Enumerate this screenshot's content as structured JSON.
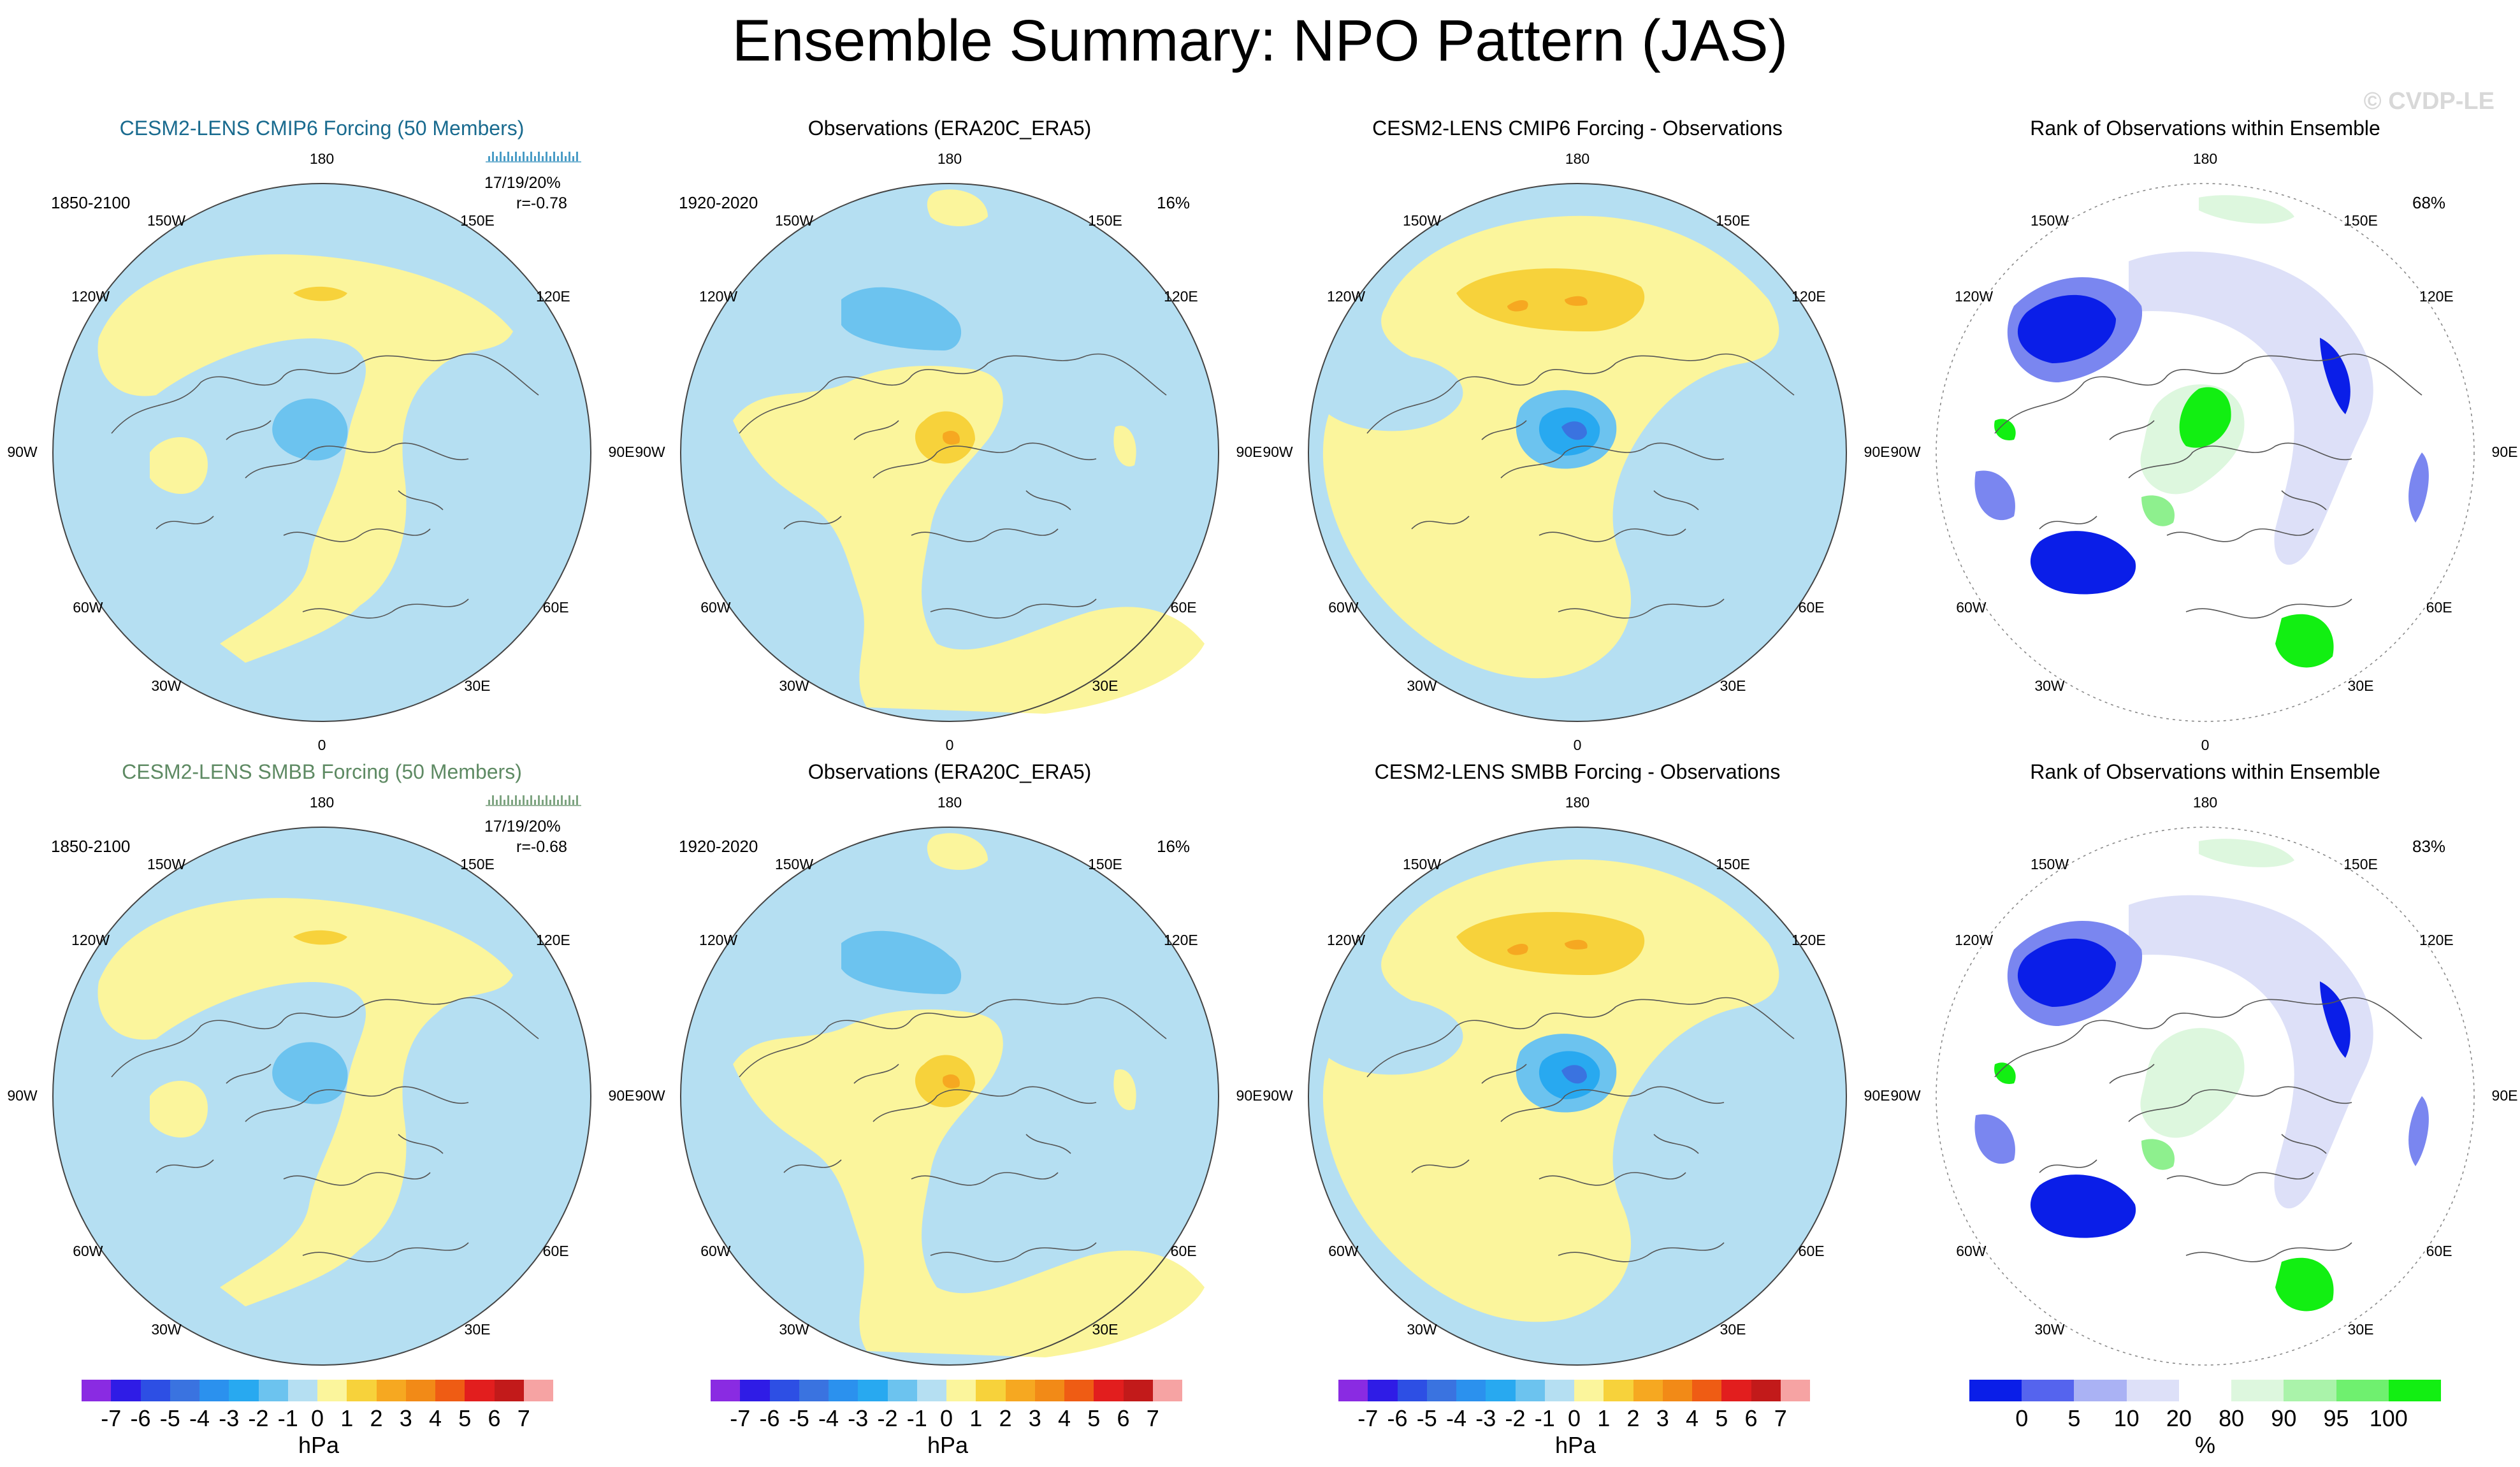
{
  "header": {
    "title": "Ensemble Summary: NPO Pattern (JAS)",
    "copyright": "© CVDP-LE"
  },
  "colors": {
    "ocean_bg": "#b5dff2",
    "pos1": "#fbf59c",
    "pos2": "#f7d23b",
    "pos3": "#f6a821",
    "neg1": "#6cc3ef",
    "neg2": "#28a9f0",
    "neg3": "#3a73e0",
    "rank_low": "#0a1ee8",
    "rank_low2": "#7a86f0",
    "rank_lowlight": "#dde0f8",
    "rank_high": "#12ef12",
    "rank_high2": "#8ef08e",
    "rank_highlight": "#ddf7de",
    "cmip_title": "#1a6b8f",
    "smbb_title": "#5e8a63"
  },
  "panels": [
    {
      "title": "CESM2-LENS CMIP6 Forcing (50 Members)",
      "period": "1850-2100",
      "stats_line1": "17/19/20%",
      "stats_line2": "r=-0.78",
      "pct": ""
    },
    {
      "title": "Observations (ERA20C_ERA5)",
      "period": "1920-2020",
      "pct": "16%"
    },
    {
      "title": "CESM2-LENS CMIP6 Forcing - Observations",
      "period": "",
      "pct": ""
    },
    {
      "title": "Rank of Observations within Ensemble",
      "period": "",
      "pct": "68%"
    },
    {
      "title": "CESM2-LENS SMBB Forcing (50 Members)",
      "period": "1850-2100",
      "stats_line1": "17/19/20%",
      "stats_line2": "r=-0.68",
      "pct": ""
    },
    {
      "title": "Observations (ERA20C_ERA5)",
      "period": "1920-2020",
      "pct": "16%"
    },
    {
      "title": "CESM2-LENS SMBB Forcing - Observations",
      "period": "",
      "pct": ""
    },
    {
      "title": "Rank of Observations within Ensemble",
      "period": "",
      "pct": "83%"
    }
  ],
  "map_labels": {
    "top": "180",
    "bottom": "0",
    "left": "90W",
    "right": "90E",
    "upper_left_1": "150W",
    "upper_left_2": "120W",
    "upper_right_1": "150E",
    "upper_right_2": "120E",
    "lower_left_1": "60W",
    "lower_left_2": "30W",
    "lower_right_1": "60E",
    "lower_right_2": "30E"
  },
  "chart_data": {
    "type": "heatmap",
    "projection": "polar stereographic (Northern Hemisphere)",
    "pressure_colorbar": {
      "unit": "hPa",
      "levels": [
        -7,
        -6,
        -5,
        -4,
        -3,
        -2,
        -1,
        0,
        1,
        2,
        3,
        4,
        5,
        6,
        7
      ],
      "tick_labels": [
        "-7",
        "-6",
        "-5",
        "-4",
        "-3",
        "-2",
        "-1",
        "0",
        "1",
        "2",
        "3",
        "4",
        "5",
        "6",
        "7"
      ],
      "colors": [
        "#8a2be2",
        "#2f1ce6",
        "#2d4fe4",
        "#3a73e0",
        "#2b91ee",
        "#28a9f0",
        "#6cc3ef",
        "#b5dff2",
        "#fbf59c",
        "#f7d23b",
        "#f6a821",
        "#f28a17",
        "#ef5c14",
        "#e21e1e",
        "#c21a1a",
        "#f6a3a3"
      ]
    },
    "rank_colorbar": {
      "unit": "%",
      "tick_labels": [
        "0",
        "5",
        "10",
        "20",
        "80",
        "90",
        "95",
        "100"
      ],
      "colors": [
        "#0a1ee8",
        "#5564ee",
        "#aab2f4",
        "#dde0f8",
        "#ffffff",
        "#ddf7de",
        "#aaf3aa",
        "#6ff06f",
        "#12ef12"
      ]
    }
  }
}
